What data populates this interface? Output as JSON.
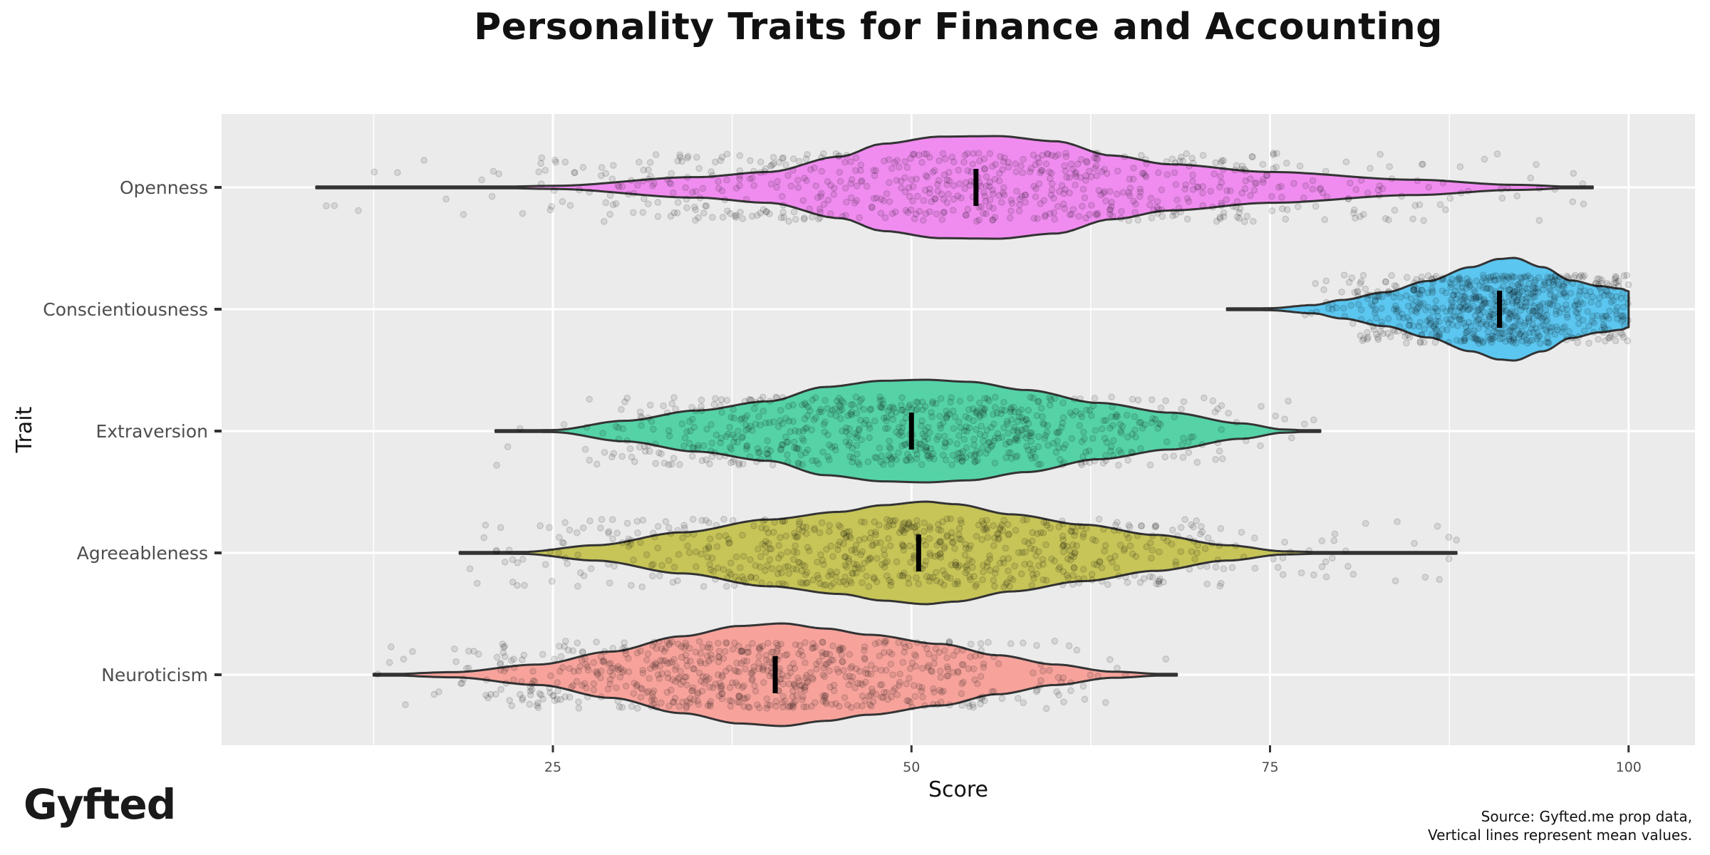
{
  "title": "Personality Traits for Finance and Accounting",
  "logo": "Gyfted",
  "caption": {
    "line1": "Source: Gyfted.me prop data,",
    "line2": "Vertical lines represent mean values."
  },
  "colors": {
    "panel_bg": "#EBEBEB",
    "grid": "#FFFFFF",
    "outline": "#333333",
    "mean_line": "#000000",
    "points": "#000000"
  },
  "chart_data": {
    "type": "violin",
    "title": "Personality Traits for Finance and Accounting",
    "xlabel": "Score",
    "ylabel": "Trait",
    "xlim": [
      3,
      108
    ],
    "x_ticks": [
      25,
      50,
      75,
      100
    ],
    "x_tick_labels": [
      "25",
      "50",
      "75",
      "100"
    ],
    "categories": [
      "Openness",
      "Conscientiousness",
      "Extraversion",
      "Agreeableness",
      "Neuroticism"
    ],
    "series": [
      {
        "name": "Openness",
        "color": "#F08CF0",
        "min": 8.5,
        "max": 97.5,
        "mean": 54.5,
        "profile": [
          [
            8.5,
            0.0
          ],
          [
            20,
            0.005
          ],
          [
            25,
            0.03
          ],
          [
            35,
            0.2
          ],
          [
            40,
            0.3
          ],
          [
            45,
            0.6
          ],
          [
            48,
            0.85
          ],
          [
            52,
            0.99
          ],
          [
            56,
            1.0
          ],
          [
            60,
            0.9
          ],
          [
            64,
            0.62
          ],
          [
            68,
            0.45
          ],
          [
            75,
            0.3
          ],
          [
            85,
            0.15
          ],
          [
            92,
            0.05
          ],
          [
            97.5,
            0.0
          ]
        ]
      },
      {
        "name": "Conscientiousness",
        "color": "#5BC6F0",
        "min": 72,
        "max": 100,
        "mean": 91,
        "profile": [
          [
            72,
            0.0
          ],
          [
            75,
            0.02
          ],
          [
            78,
            0.08
          ],
          [
            80,
            0.18
          ],
          [
            83,
            0.33
          ],
          [
            86,
            0.55
          ],
          [
            89,
            0.82
          ],
          [
            91,
            0.98
          ],
          [
            92,
            1.0
          ],
          [
            94,
            0.82
          ],
          [
            96,
            0.56
          ],
          [
            98,
            0.45
          ],
          [
            99.5,
            0.4
          ],
          [
            100,
            0.35
          ]
        ]
      },
      {
        "name": "Extraversion",
        "color": "#55D3A6",
        "min": 21,
        "max": 78.5,
        "mean": 50,
        "profile": [
          [
            21,
            0.0
          ],
          [
            25,
            0.02
          ],
          [
            30,
            0.2
          ],
          [
            35,
            0.4
          ],
          [
            40,
            0.58
          ],
          [
            44,
            0.86
          ],
          [
            48,
            0.98
          ],
          [
            51,
            1.0
          ],
          [
            54,
            0.96
          ],
          [
            58,
            0.8
          ],
          [
            63,
            0.55
          ],
          [
            68,
            0.36
          ],
          [
            73,
            0.15
          ],
          [
            76,
            0.03
          ],
          [
            78.5,
            0.0
          ]
        ]
      },
      {
        "name": "Agreeableness",
        "color": "#C7C458",
        "min": 18.5,
        "max": 88,
        "mean": 50.5,
        "profile": [
          [
            18.5,
            0.0
          ],
          [
            23,
            0.02
          ],
          [
            28,
            0.15
          ],
          [
            34,
            0.4
          ],
          [
            40,
            0.65
          ],
          [
            45,
            0.8
          ],
          [
            48,
            0.93
          ],
          [
            51,
            1.0
          ],
          [
            53,
            0.95
          ],
          [
            57,
            0.75
          ],
          [
            62,
            0.55
          ],
          [
            67,
            0.35
          ],
          [
            72,
            0.15
          ],
          [
            76,
            0.03
          ],
          [
            80,
            0.005
          ],
          [
            88,
            0.0
          ]
        ]
      },
      {
        "name": "Neuroticism",
        "color": "#F7A39C",
        "min": 12.5,
        "max": 68.5,
        "mean": 40.5,
        "profile": [
          [
            12.5,
            0.0
          ],
          [
            18,
            0.05
          ],
          [
            24,
            0.2
          ],
          [
            29,
            0.45
          ],
          [
            34,
            0.75
          ],
          [
            38,
            0.95
          ],
          [
            41,
            1.0
          ],
          [
            44,
            0.9
          ],
          [
            47,
            0.78
          ],
          [
            52,
            0.6
          ],
          [
            56,
            0.38
          ],
          [
            60,
            0.2
          ],
          [
            64,
            0.06
          ],
          [
            68.5,
            0.0
          ]
        ]
      }
    ],
    "jitter_points": true,
    "grid": true,
    "legend": "none"
  }
}
